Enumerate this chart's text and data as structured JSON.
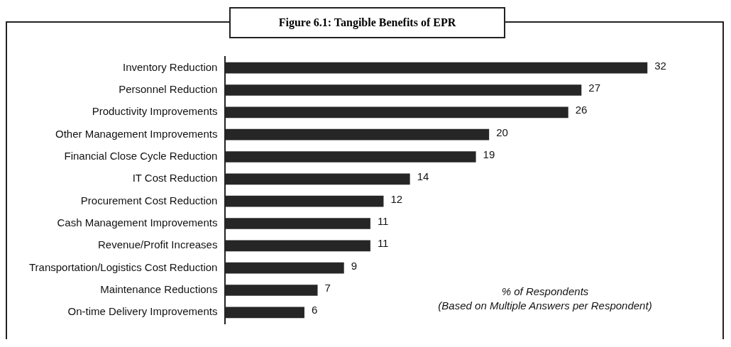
{
  "chart_data": {
    "type": "bar",
    "orientation": "horizontal",
    "title": "Figure 6.1: Tangible Benefits of EPR",
    "categories": [
      "Inventory Reduction",
      "Personnel Reduction",
      "Productivity Improvements",
      "Other Management Improvements",
      "Financial Close Cycle Reduction",
      "IT Cost Reduction",
      "Procurement Cost Reduction",
      "Cash Management Improvements",
      "Revenue/Profit Increases",
      "Transportation/Logistics Cost Reduction",
      "Maintenance Reductions",
      "On-time Delivery Improvements"
    ],
    "values": [
      32,
      27,
      26,
      20,
      19,
      14,
      12,
      11,
      11,
      9,
      7,
      6
    ],
    "color": "#262626",
    "data_labels": true,
    "legend": false,
    "annotations": [
      "% of Respondents",
      "(Based on Multiple Answers per Respondent)"
    ]
  }
}
